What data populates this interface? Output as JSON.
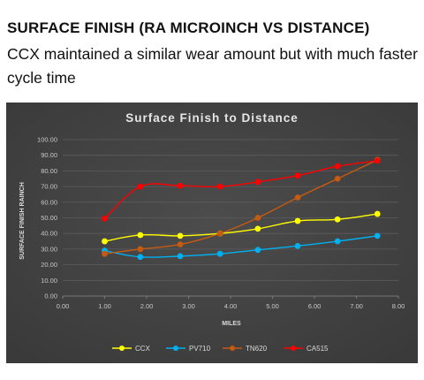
{
  "page": {
    "heading": "SURFACE FINISH (RA MICROINCH VS DISTANCE)",
    "subheading": "CCX maintained a similar wear amount but with much faster cycle time"
  },
  "chart_data": {
    "type": "line",
    "title": "Surface Finish to Distance",
    "xlabel": "MILES",
    "ylabel": "SURFACE FINISH RAINCH",
    "xlim": [
      0,
      8
    ],
    "ylim": [
      0,
      100
    ],
    "x_ticks": [
      "0.00",
      "1.00",
      "2.00",
      "3.00",
      "4.00",
      "5.00",
      "6.00",
      "7.00",
      "8.00"
    ],
    "y_ticks": [
      "0.00",
      "10.00",
      "20.00",
      "30.00",
      "40.00",
      "50.00",
      "60.00",
      "70.00",
      "80.00",
      "90.00",
      "100.00"
    ],
    "grid": "horizontal",
    "legend_position": "bottom",
    "series": [
      {
        "name": "CCX",
        "color": "#ffff00",
        "x": [
          1.0,
          1.85,
          2.8,
          3.75,
          4.65,
          5.6,
          6.55,
          7.5
        ],
        "y": [
          35,
          39,
          38.5,
          40,
          43,
          48,
          49,
          52.5
        ]
      },
      {
        "name": "PV710",
        "color": "#00b0f0",
        "x": [
          1.0,
          1.85,
          2.8,
          3.75,
          4.65,
          5.6,
          6.55,
          7.5
        ],
        "y": [
          29,
          25,
          25.5,
          27,
          29.5,
          32,
          35,
          38.5
        ]
      },
      {
        "name": "TN620",
        "color": "#c55a11",
        "x": [
          1.0,
          1.85,
          2.8,
          3.75,
          4.65,
          5.6,
          6.55,
          7.5
        ],
        "y": [
          27,
          30,
          33,
          40,
          50,
          63,
          75,
          87
        ]
      },
      {
        "name": "CA515",
        "color": "#ff0000",
        "x": [
          1.0,
          1.85,
          2.8,
          3.75,
          4.65,
          5.6,
          6.55,
          7.5
        ],
        "y": [
          49.5,
          70,
          70.5,
          70,
          73,
          77,
          83,
          86.5
        ]
      }
    ]
  }
}
